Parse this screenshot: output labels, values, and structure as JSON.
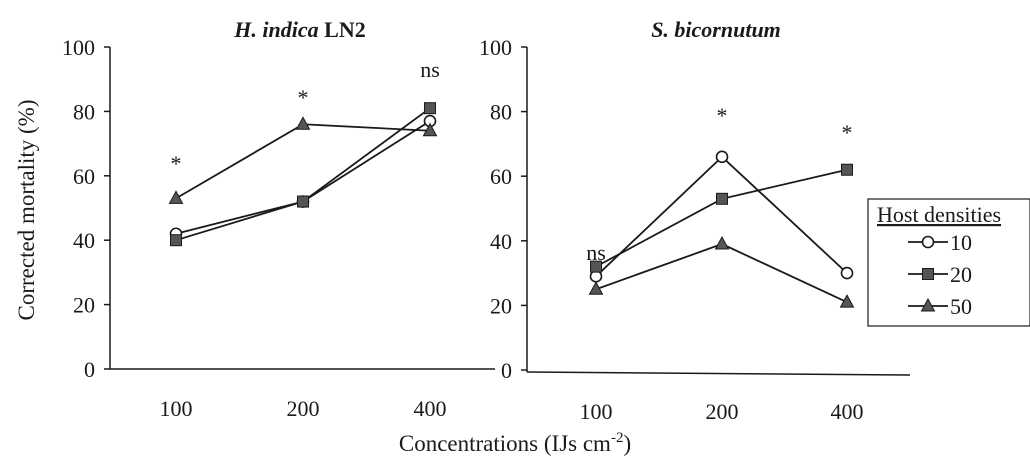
{
  "chart_data": [
    {
      "type": "line",
      "title_italic": "H. indica",
      "title_upright": "LN2",
      "ylabel": "Corrected mortality (%)",
      "ylim": [
        0,
        100
      ],
      "yticks": [
        0,
        20,
        40,
        60,
        80,
        100
      ],
      "categories": [
        "100",
        "200",
        "400"
      ],
      "series": [
        {
          "name": "10",
          "values": [
            42,
            52,
            77
          ]
        },
        {
          "name": "20",
          "values": [
            40,
            52,
            81
          ]
        },
        {
          "name": "50",
          "values": [
            53,
            76,
            74
          ]
        }
      ],
      "annotations": [
        "*",
        "*",
        "ns"
      ]
    },
    {
      "type": "line",
      "title_italic": "S. bicornutum",
      "title_upright": "",
      "ylim": [
        0,
        100
      ],
      "yticks": [
        0,
        20,
        40,
        60,
        80,
        100
      ],
      "categories": [
        "100",
        "200",
        "400"
      ],
      "series": [
        {
          "name": "10",
          "values": [
            29,
            66,
            30
          ]
        },
        {
          "name": "20",
          "values": [
            32,
            53,
            62
          ]
        },
        {
          "name": "50",
          "values": [
            25,
            39,
            21
          ]
        }
      ],
      "annotations": [
        "ns",
        "*",
        "*"
      ]
    }
  ],
  "xlabel": "Concentrations (IJs cm",
  "xlabel_exp": "-2",
  "xlabel_close": ")",
  "legend": {
    "title": "Host densities",
    "entries": [
      {
        "label": "10",
        "marker": "circle-open"
      },
      {
        "label": "20",
        "marker": "square-filled"
      },
      {
        "label": "50",
        "marker": "triangle-filled"
      }
    ]
  },
  "colors": {
    "line": "#1a1a1a",
    "filled_marker": "#555555",
    "open_marker": "#ffffff"
  }
}
